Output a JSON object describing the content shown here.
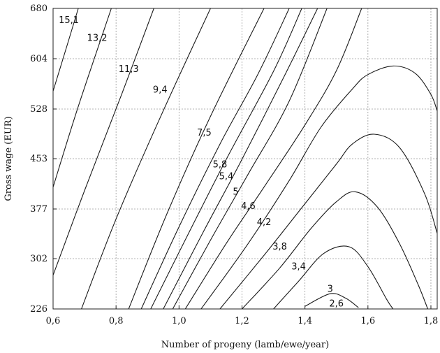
{
  "chart_data": {
    "type": "contour",
    "xlabel": "Number of progeny (lamb/ewe/year)",
    "ylabel": "Gross wage (EUR)",
    "xlim": [
      0.6,
      1.82
    ],
    "ylim": [
      226,
      680
    ],
    "x_ticks": [
      0.6,
      0.8,
      1.0,
      1.2,
      1.4,
      1.6,
      1.8
    ],
    "x_tick_labels": [
      "0,6",
      "0,8",
      "1,0",
      "1,2",
      "1,4",
      "1,6",
      "1,8"
    ],
    "y_ticks": [
      226,
      302,
      377,
      453,
      528,
      604,
      680
    ],
    "y_tick_labels": [
      "226",
      "302",
      "377",
      "453",
      "528",
      "604",
      "680"
    ],
    "grid": "dotted",
    "colors": {
      "line": "#1a1a1a",
      "grid": "#9a9a9a",
      "frame": "#222222"
    },
    "contours": [
      {
        "label": "15,1",
        "label_at": [
          0.65,
          662
        ],
        "points": [
          [
            0.6,
            555
          ],
          [
            0.645,
            625
          ],
          [
            0.68,
            680
          ]
        ]
      },
      {
        "label": "13,2",
        "label_at": [
          0.74,
          635
        ],
        "points": [
          [
            0.6,
            410
          ],
          [
            0.68,
            532
          ],
          [
            0.785,
            680
          ]
        ]
      },
      {
        "label": "11,3",
        "label_at": [
          0.84,
          588
        ],
        "points": [
          [
            0.6,
            277
          ],
          [
            0.7,
            405
          ],
          [
            0.82,
            553
          ],
          [
            0.92,
            680
          ]
        ]
      },
      {
        "label": "9,4",
        "label_at": [
          0.94,
          557
        ],
        "points": [
          [
            0.69,
            226
          ],
          [
            0.8,
            362
          ],
          [
            0.94,
            515
          ],
          [
            1.1,
            680
          ]
        ]
      },
      {
        "label": "7,5",
        "label_at": [
          1.08,
          492
        ],
        "points": [
          [
            0.84,
            226
          ],
          [
            0.96,
            368
          ],
          [
            1.1,
            517
          ],
          [
            1.27,
            680
          ]
        ]
      },
      {
        "label": "5,8",
        "label_at": [
          1.13,
          444
        ],
        "points": [
          [
            0.88,
            226
          ],
          [
            1.0,
            350
          ],
          [
            1.13,
            475
          ],
          [
            1.25,
            580
          ],
          [
            1.35,
            680
          ]
        ]
      },
      {
        "label": "5,4",
        "label_at": [
          1.15,
          426
        ],
        "points": [
          [
            0.91,
            226
          ],
          [
            1.03,
            340
          ],
          [
            1.15,
            452
          ],
          [
            1.3,
            585
          ],
          [
            1.39,
            680
          ]
        ]
      },
      {
        "label": "5",
        "label_at": [
          1.18,
          403
        ],
        "points": [
          [
            0.95,
            226
          ],
          [
            1.08,
            345
          ],
          [
            1.2,
            452
          ],
          [
            1.34,
            583
          ],
          [
            1.44,
            680
          ]
        ]
      },
      {
        "label": "4,6",
        "label_at": [
          1.22,
          381
        ],
        "points": [
          [
            0.98,
            226
          ],
          [
            1.1,
            330
          ],
          [
            1.22,
            430
          ],
          [
            1.35,
            540
          ],
          [
            1.47,
            680
          ]
        ]
      },
      {
        "label": "4,2",
        "label_at": [
          1.27,
          357
        ],
        "points": [
          [
            1.02,
            226
          ],
          [
            1.15,
            325
          ],
          [
            1.27,
            410
          ],
          [
            1.4,
            504
          ],
          [
            1.5,
            586
          ],
          [
            1.58,
            680
          ]
        ]
      },
      {
        "label": "3,8",
        "label_at": [
          1.32,
          320
        ],
        "points": [
          [
            1.07,
            226
          ],
          [
            1.22,
            325
          ],
          [
            1.35,
            420
          ],
          [
            1.45,
            500
          ],
          [
            1.55,
            558
          ],
          [
            1.6,
            580
          ],
          [
            1.68,
            593
          ],
          [
            1.75,
            582
          ],
          [
            1.8,
            550
          ],
          [
            1.82,
            525
          ]
        ]
      },
      {
        "label": "3,4",
        "label_at": [
          1.38,
          290
        ],
        "points": [
          [
            1.13,
            226
          ],
          [
            1.28,
            313
          ],
          [
            1.4,
            385
          ],
          [
            1.5,
            445
          ],
          [
            1.55,
            475
          ],
          [
            1.62,
            490
          ],
          [
            1.7,
            470
          ],
          [
            1.78,
            400
          ],
          [
            1.82,
            340
          ]
        ]
      },
      {
        "label": "3",
        "label_at": [
          1.48,
          256
        ],
        "points": [
          [
            1.2,
            226
          ],
          [
            1.32,
            288
          ],
          [
            1.42,
            348
          ],
          [
            1.5,
            388
          ],
          [
            1.56,
            403
          ],
          [
            1.63,
            380
          ],
          [
            1.7,
            325
          ],
          [
            1.76,
            262
          ],
          [
            1.79,
            226
          ]
        ]
      },
      {
        "label": "2,6",
        "label_at": [
          1.5,
          234
        ],
        "points": [
          [
            1.3,
            226
          ],
          [
            1.38,
            268
          ],
          [
            1.46,
            310
          ],
          [
            1.54,
            320
          ],
          [
            1.6,
            290
          ],
          [
            1.66,
            240
          ],
          [
            1.68,
            226
          ]
        ]
      },
      {
        "label": "",
        "label_at": null,
        "points": [
          [
            1.4,
            230
          ],
          [
            1.48,
            249
          ],
          [
            1.53,
            242
          ],
          [
            1.57,
            228
          ]
        ]
      }
    ]
  }
}
